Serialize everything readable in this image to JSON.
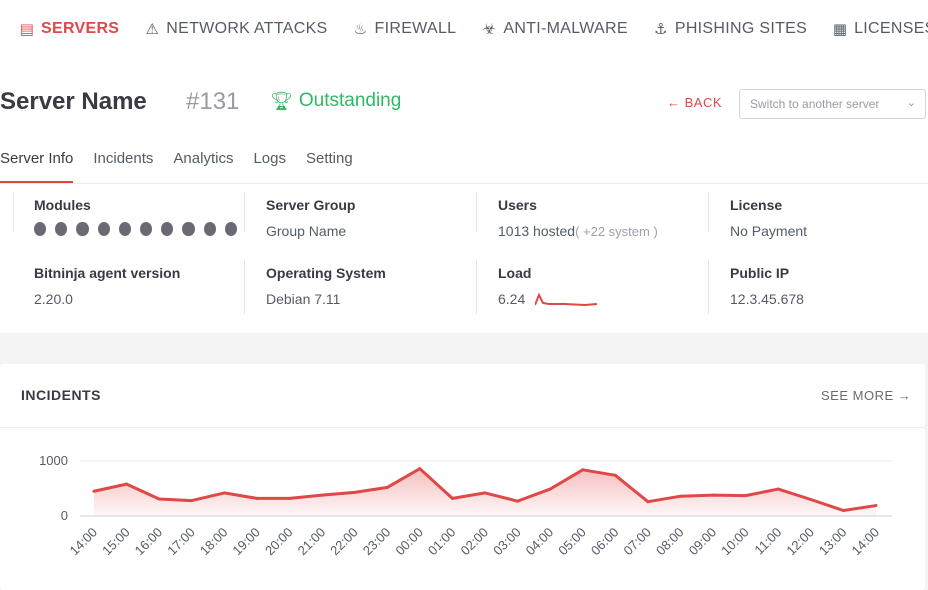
{
  "nav": [
    {
      "label": "SERVERS",
      "icon": "server-icon",
      "glyph": "▤",
      "active": true
    },
    {
      "label": "NETWORK ATTACKS",
      "icon": "warning-icon",
      "glyph": "⚠",
      "active": false
    },
    {
      "label": "FIREWALL",
      "icon": "flame-icon",
      "glyph": "♨",
      "active": false
    },
    {
      "label": "ANTI-MALWARE",
      "icon": "biohazard-icon",
      "glyph": "☣",
      "active": false
    },
    {
      "label": "PHISHING SITES",
      "icon": "anchor-icon",
      "glyph": "⚓",
      "active": false
    },
    {
      "label": "LICENSES",
      "icon": "checkerboard-icon",
      "glyph": "▦",
      "active": false
    }
  ],
  "header": {
    "title": "Server Name",
    "number": "#131",
    "badge": "Outstanding",
    "back": "← BACK",
    "switch_placeholder": "Switch to another server"
  },
  "tabs": [
    "Server Info",
    "Incidents",
    "Analytics",
    "Logs",
    "Setting"
  ],
  "info": {
    "modules_label": "Modules",
    "modules_count": 10,
    "server_group_label": "Server Group",
    "server_group": "Group Name",
    "users_label": "Users",
    "users_hosted": "1013 hosted",
    "users_system": "( +22 system )",
    "license_label": "License",
    "license": "No Payment",
    "agent_label": "Bitninja agent version",
    "agent": "2.20.0",
    "os_label": "Operating System",
    "os": "Debian 7.11",
    "load_label": "Load",
    "load": "6.24",
    "ip_label": "Public IP",
    "ip": "12.3.45.678"
  },
  "incidents": {
    "title": "INCIDENTS",
    "see_more": "SEE MORE →"
  },
  "chart_data": {
    "type": "area",
    "x": [
      "14:00",
      "15:00",
      "16:00",
      "17:00",
      "18:00",
      "19:00",
      "20:00",
      "21:00",
      "22:00",
      "23:00",
      "00:00",
      "01:00",
      "02:00",
      "03:00",
      "04:00",
      "05:00",
      "06:00",
      "07:00",
      "08:00",
      "09:00",
      "10:00",
      "11:00",
      "12:00",
      "13:00",
      "14:00"
    ],
    "values": [
      450,
      580,
      310,
      280,
      420,
      320,
      320,
      380,
      430,
      520,
      860,
      320,
      420,
      270,
      490,
      840,
      740,
      260,
      360,
      380,
      370,
      490,
      300,
      100,
      190
    ],
    "yticks": [
      "1000",
      "0"
    ],
    "ylim": [
      0,
      1000
    ],
    "color": "#e04848"
  }
}
